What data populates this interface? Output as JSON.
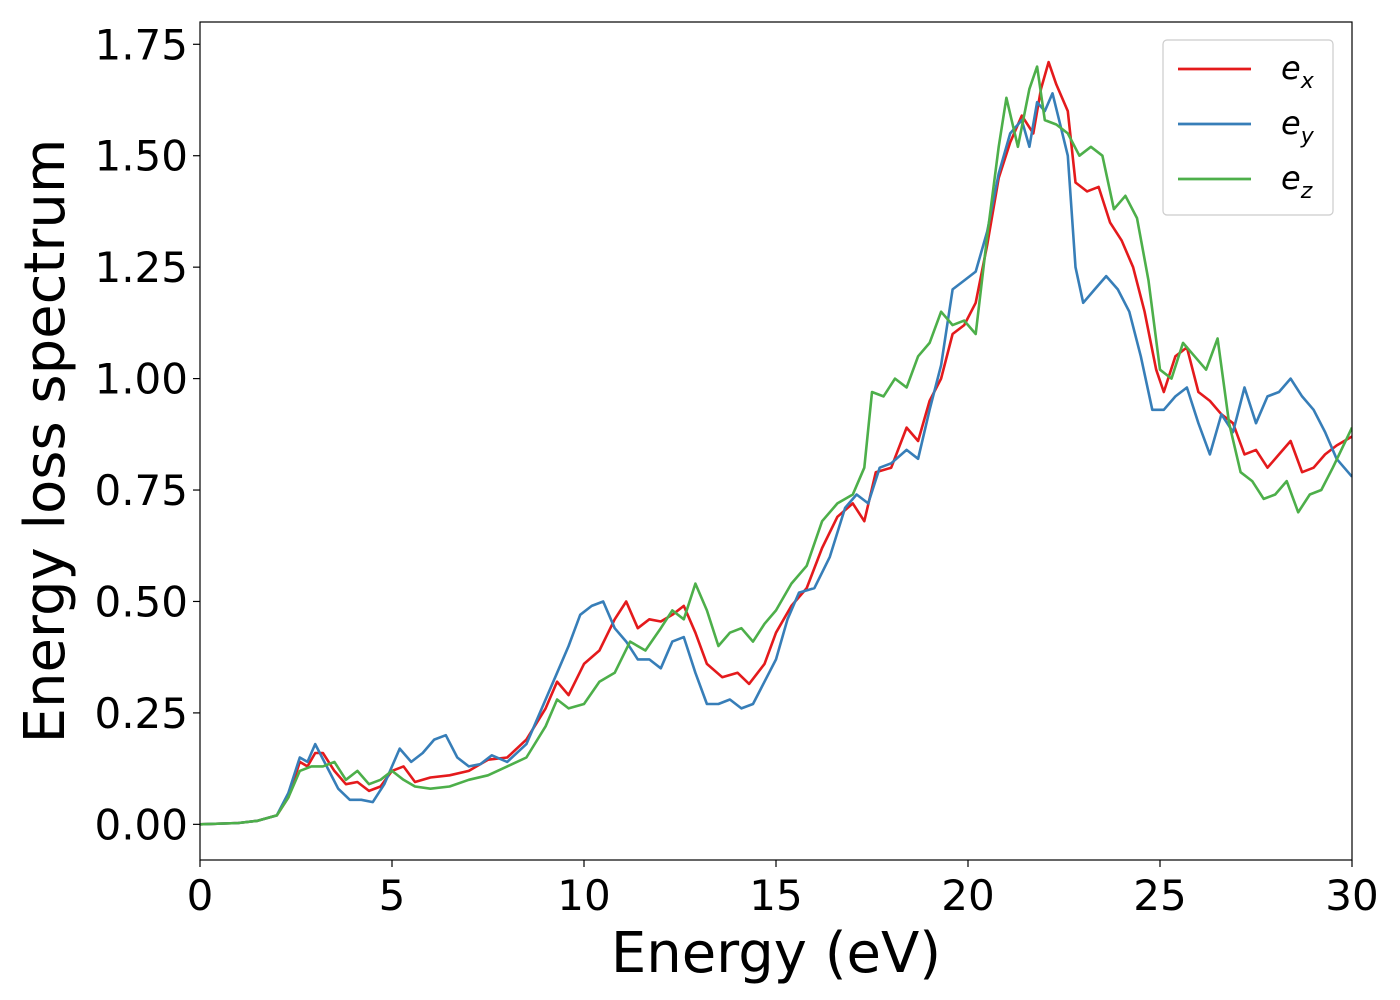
{
  "chart_data": {
    "type": "line",
    "title": "",
    "xlabel": "Energy (eV)",
    "ylabel": "Energy loss spectrum",
    "xlim": [
      0,
      30
    ],
    "ylim": [
      -0.08,
      1.8
    ],
    "xticks": [
      0,
      5,
      10,
      15,
      20,
      25,
      30
    ],
    "xtick_labels": [
      "0",
      "5",
      "10",
      "15",
      "20",
      "25",
      "30"
    ],
    "yticks": [
      0,
      0.25,
      0.5,
      0.75,
      1.0,
      1.25,
      1.5,
      1.75
    ],
    "ytick_labels": [
      "0.00",
      "0.25",
      "0.50",
      "0.75",
      "1.00",
      "1.25",
      "1.50",
      "1.75"
    ],
    "grid": false,
    "legend_position": "top-right",
    "series": [
      {
        "name": "e_x",
        "label_base": "e",
        "label_sub": "x",
        "color": "#e41a1c",
        "points": [
          [
            0,
            0
          ],
          [
            1,
            0.003
          ],
          [
            1.5,
            0.008
          ],
          [
            2,
            0.02
          ],
          [
            2.3,
            0.06
          ],
          [
            2.6,
            0.14
          ],
          [
            2.8,
            0.13
          ],
          [
            3.0,
            0.16
          ],
          [
            3.2,
            0.16
          ],
          [
            3.5,
            0.12
          ],
          [
            3.8,
            0.09
          ],
          [
            4.1,
            0.095
          ],
          [
            4.4,
            0.075
          ],
          [
            4.7,
            0.085
          ],
          [
            5.0,
            0.12
          ],
          [
            5.3,
            0.13
          ],
          [
            5.6,
            0.095
          ],
          [
            6.0,
            0.105
          ],
          [
            6.5,
            0.11
          ],
          [
            7.0,
            0.12
          ],
          [
            7.5,
            0.145
          ],
          [
            8.0,
            0.15
          ],
          [
            8.5,
            0.19
          ],
          [
            9.0,
            0.26
          ],
          [
            9.3,
            0.32
          ],
          [
            9.6,
            0.29
          ],
          [
            10.0,
            0.36
          ],
          [
            10.4,
            0.39
          ],
          [
            10.8,
            0.46
          ],
          [
            11.1,
            0.5
          ],
          [
            11.4,
            0.44
          ],
          [
            11.7,
            0.46
          ],
          [
            12.0,
            0.455
          ],
          [
            12.3,
            0.47
          ],
          [
            12.6,
            0.49
          ],
          [
            12.9,
            0.43
          ],
          [
            13.2,
            0.36
          ],
          [
            13.6,
            0.33
          ],
          [
            14.0,
            0.34
          ],
          [
            14.3,
            0.315
          ],
          [
            14.7,
            0.36
          ],
          [
            15.0,
            0.43
          ],
          [
            15.4,
            0.49
          ],
          [
            15.8,
            0.53
          ],
          [
            16.2,
            0.62
          ],
          [
            16.6,
            0.69
          ],
          [
            17.0,
            0.72
          ],
          [
            17.3,
            0.68
          ],
          [
            17.6,
            0.79
          ],
          [
            18.0,
            0.8
          ],
          [
            18.4,
            0.89
          ],
          [
            18.7,
            0.86
          ],
          [
            19.0,
            0.95
          ],
          [
            19.3,
            1.0
          ],
          [
            19.6,
            1.1
          ],
          [
            19.9,
            1.12
          ],
          [
            20.2,
            1.17
          ],
          [
            20.5,
            1.3
          ],
          [
            20.8,
            1.45
          ],
          [
            21.1,
            1.53
          ],
          [
            21.4,
            1.59
          ],
          [
            21.7,
            1.55
          ],
          [
            21.9,
            1.65
          ],
          [
            22.1,
            1.71
          ],
          [
            22.3,
            1.66
          ],
          [
            22.6,
            1.6
          ],
          [
            22.8,
            1.44
          ],
          [
            23.1,
            1.42
          ],
          [
            23.4,
            1.43
          ],
          [
            23.7,
            1.35
          ],
          [
            24.0,
            1.31
          ],
          [
            24.3,
            1.25
          ],
          [
            24.6,
            1.15
          ],
          [
            24.9,
            1.02
          ],
          [
            25.1,
            0.97
          ],
          [
            25.4,
            1.05
          ],
          [
            25.7,
            1.07
          ],
          [
            26.0,
            0.97
          ],
          [
            26.3,
            0.95
          ],
          [
            26.6,
            0.92
          ],
          [
            26.9,
            0.9
          ],
          [
            27.2,
            0.83
          ],
          [
            27.5,
            0.84
          ],
          [
            27.8,
            0.8
          ],
          [
            28.1,
            0.83
          ],
          [
            28.4,
            0.86
          ],
          [
            28.7,
            0.79
          ],
          [
            29.0,
            0.8
          ],
          [
            29.3,
            0.83
          ],
          [
            29.6,
            0.85
          ],
          [
            30.0,
            0.87
          ]
        ]
      },
      {
        "name": "e_y",
        "label_base": "e",
        "label_sub": "y",
        "color": "#377eb8",
        "points": [
          [
            0,
            0
          ],
          [
            1,
            0.003
          ],
          [
            1.5,
            0.008
          ],
          [
            2,
            0.02
          ],
          [
            2.3,
            0.07
          ],
          [
            2.6,
            0.15
          ],
          [
            2.8,
            0.14
          ],
          [
            3.0,
            0.18
          ],
          [
            3.3,
            0.13
          ],
          [
            3.6,
            0.08
          ],
          [
            3.9,
            0.055
          ],
          [
            4.2,
            0.055
          ],
          [
            4.5,
            0.05
          ],
          [
            4.8,
            0.09
          ],
          [
            5.0,
            0.13
          ],
          [
            5.2,
            0.17
          ],
          [
            5.5,
            0.14
          ],
          [
            5.8,
            0.16
          ],
          [
            6.1,
            0.19
          ],
          [
            6.4,
            0.2
          ],
          [
            6.7,
            0.15
          ],
          [
            7.0,
            0.13
          ],
          [
            7.3,
            0.135
          ],
          [
            7.6,
            0.155
          ],
          [
            8.0,
            0.14
          ],
          [
            8.5,
            0.18
          ],
          [
            9.0,
            0.28
          ],
          [
            9.3,
            0.34
          ],
          [
            9.6,
            0.4
          ],
          [
            9.9,
            0.47
          ],
          [
            10.2,
            0.49
          ],
          [
            10.5,
            0.5
          ],
          [
            10.8,
            0.44
          ],
          [
            11.1,
            0.41
          ],
          [
            11.4,
            0.37
          ],
          [
            11.7,
            0.37
          ],
          [
            12.0,
            0.35
          ],
          [
            12.3,
            0.41
          ],
          [
            12.6,
            0.42
          ],
          [
            12.9,
            0.34
          ],
          [
            13.2,
            0.27
          ],
          [
            13.5,
            0.27
          ],
          [
            13.8,
            0.28
          ],
          [
            14.1,
            0.26
          ],
          [
            14.4,
            0.27
          ],
          [
            14.7,
            0.32
          ],
          [
            15.0,
            0.37
          ],
          [
            15.3,
            0.46
          ],
          [
            15.6,
            0.52
          ],
          [
            16.0,
            0.53
          ],
          [
            16.4,
            0.6
          ],
          [
            16.8,
            0.71
          ],
          [
            17.1,
            0.74
          ],
          [
            17.4,
            0.72
          ],
          [
            17.7,
            0.8
          ],
          [
            18.0,
            0.81
          ],
          [
            18.4,
            0.84
          ],
          [
            18.7,
            0.82
          ],
          [
            19.0,
            0.93
          ],
          [
            19.3,
            1.03
          ],
          [
            19.6,
            1.2
          ],
          [
            19.9,
            1.22
          ],
          [
            20.2,
            1.24
          ],
          [
            20.5,
            1.33
          ],
          [
            20.8,
            1.46
          ],
          [
            21.1,
            1.55
          ],
          [
            21.4,
            1.58
          ],
          [
            21.6,
            1.52
          ],
          [
            21.8,
            1.62
          ],
          [
            22.0,
            1.6
          ],
          [
            22.2,
            1.64
          ],
          [
            22.4,
            1.57
          ],
          [
            22.6,
            1.5
          ],
          [
            22.8,
            1.25
          ],
          [
            23.0,
            1.17
          ],
          [
            23.3,
            1.2
          ],
          [
            23.6,
            1.23
          ],
          [
            23.9,
            1.2
          ],
          [
            24.2,
            1.15
          ],
          [
            24.5,
            1.05
          ],
          [
            24.8,
            0.93
          ],
          [
            25.1,
            0.93
          ],
          [
            25.4,
            0.96
          ],
          [
            25.7,
            0.98
          ],
          [
            26.0,
            0.9
          ],
          [
            26.3,
            0.83
          ],
          [
            26.6,
            0.92
          ],
          [
            26.9,
            0.88
          ],
          [
            27.2,
            0.98
          ],
          [
            27.5,
            0.9
          ],
          [
            27.8,
            0.96
          ],
          [
            28.1,
            0.97
          ],
          [
            28.4,
            1.0
          ],
          [
            28.7,
            0.96
          ],
          [
            29.0,
            0.93
          ],
          [
            29.3,
            0.88
          ],
          [
            29.6,
            0.82
          ],
          [
            30.0,
            0.78
          ]
        ]
      },
      {
        "name": "e_z",
        "label_base": "e",
        "label_sub": "z",
        "color": "#4daf4a",
        "points": [
          [
            0,
            0
          ],
          [
            1,
            0.003
          ],
          [
            1.5,
            0.008
          ],
          [
            2,
            0.02
          ],
          [
            2.3,
            0.06
          ],
          [
            2.6,
            0.12
          ],
          [
            2.9,
            0.13
          ],
          [
            3.2,
            0.13
          ],
          [
            3.5,
            0.14
          ],
          [
            3.8,
            0.1
          ],
          [
            4.1,
            0.12
          ],
          [
            4.4,
            0.09
          ],
          [
            4.7,
            0.1
          ],
          [
            5.0,
            0.12
          ],
          [
            5.3,
            0.1
          ],
          [
            5.6,
            0.085
          ],
          [
            6.0,
            0.08
          ],
          [
            6.5,
            0.085
          ],
          [
            7.0,
            0.1
          ],
          [
            7.5,
            0.11
          ],
          [
            8.0,
            0.13
          ],
          [
            8.5,
            0.15
          ],
          [
            9.0,
            0.22
          ],
          [
            9.3,
            0.28
          ],
          [
            9.6,
            0.26
          ],
          [
            10.0,
            0.27
          ],
          [
            10.4,
            0.32
          ],
          [
            10.8,
            0.34
          ],
          [
            11.2,
            0.41
          ],
          [
            11.6,
            0.39
          ],
          [
            12.0,
            0.44
          ],
          [
            12.3,
            0.48
          ],
          [
            12.6,
            0.46
          ],
          [
            12.9,
            0.54
          ],
          [
            13.2,
            0.48
          ],
          [
            13.5,
            0.4
          ],
          [
            13.8,
            0.43
          ],
          [
            14.1,
            0.44
          ],
          [
            14.4,
            0.41
          ],
          [
            14.7,
            0.45
          ],
          [
            15.0,
            0.48
          ],
          [
            15.4,
            0.54
          ],
          [
            15.8,
            0.58
          ],
          [
            16.2,
            0.68
          ],
          [
            16.6,
            0.72
          ],
          [
            17.0,
            0.74
          ],
          [
            17.3,
            0.8
          ],
          [
            17.5,
            0.97
          ],
          [
            17.8,
            0.96
          ],
          [
            18.1,
            1.0
          ],
          [
            18.4,
            0.98
          ],
          [
            18.7,
            1.05
          ],
          [
            19.0,
            1.08
          ],
          [
            19.3,
            1.15
          ],
          [
            19.6,
            1.12
          ],
          [
            19.9,
            1.13
          ],
          [
            20.2,
            1.1
          ],
          [
            20.5,
            1.32
          ],
          [
            20.8,
            1.52
          ],
          [
            21.0,
            1.63
          ],
          [
            21.3,
            1.52
          ],
          [
            21.6,
            1.65
          ],
          [
            21.8,
            1.7
          ],
          [
            22.0,
            1.58
          ],
          [
            22.3,
            1.57
          ],
          [
            22.6,
            1.55
          ],
          [
            22.9,
            1.5
          ],
          [
            23.2,
            1.52
          ],
          [
            23.5,
            1.5
          ],
          [
            23.8,
            1.38
          ],
          [
            24.1,
            1.41
          ],
          [
            24.4,
            1.36
          ],
          [
            24.7,
            1.22
          ],
          [
            25.0,
            1.02
          ],
          [
            25.3,
            1.0
          ],
          [
            25.6,
            1.08
          ],
          [
            25.9,
            1.05
          ],
          [
            26.2,
            1.02
          ],
          [
            26.5,
            1.09
          ],
          [
            26.8,
            0.9
          ],
          [
            27.1,
            0.79
          ],
          [
            27.4,
            0.77
          ],
          [
            27.7,
            0.73
          ],
          [
            28.0,
            0.74
          ],
          [
            28.3,
            0.77
          ],
          [
            28.6,
            0.7
          ],
          [
            28.9,
            0.74
          ],
          [
            29.2,
            0.75
          ],
          [
            29.5,
            0.8
          ],
          [
            30.0,
            0.89
          ]
        ]
      }
    ]
  }
}
